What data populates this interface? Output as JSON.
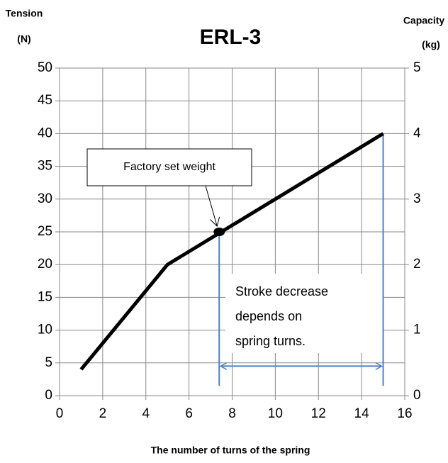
{
  "chart_data": {
    "type": "line",
    "title": "ERL-3",
    "y_label": [
      "Tension",
      "(N)"
    ],
    "y2_label": [
      "Capacity",
      "(kg)"
    ],
    "x_label": "The number of turns of the spring",
    "x": [
      1,
      5,
      15
    ],
    "series": [
      {
        "color": "#000000",
        "values": [
          4,
          20,
          40
        ]
      }
    ],
    "xlim": [
      0,
      16
    ],
    "xticks": [
      0,
      2,
      4,
      6,
      8,
      10,
      12,
      14,
      16
    ],
    "ylim": [
      0,
      50
    ],
    "yticks": [
      0,
      5,
      10,
      15,
      20,
      25,
      30,
      35,
      40,
      45,
      50
    ],
    "y2lim": [
      0,
      5
    ],
    "y2ticks": [
      0,
      1,
      2,
      3,
      4,
      5
    ],
    "grid": true,
    "factory_point": {
      "x": 7.4,
      "y": 25,
      "label": "Factory set weight"
    },
    "stroke": {
      "x": [
        7.4,
        15
      ],
      "top": [
        25,
        40
      ],
      "bottom": 1.5,
      "arrow_y": 4.5,
      "color": "#4f81bd",
      "text": [
        "Stroke decrease",
        "depends on",
        "spring turns."
      ]
    }
  }
}
